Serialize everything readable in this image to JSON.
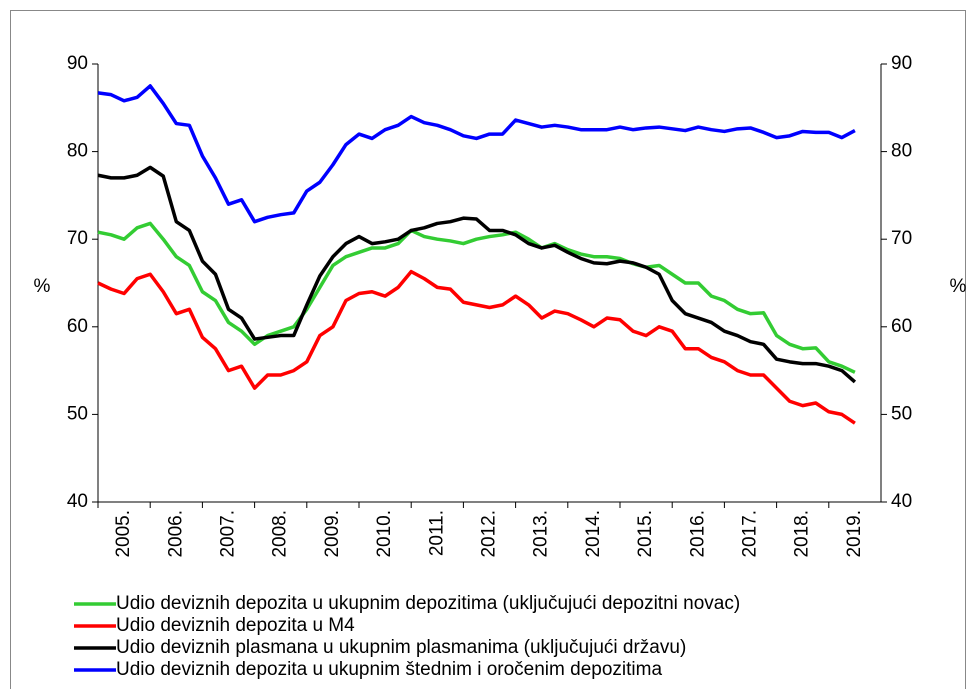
{
  "chart_data": {
    "type": "line",
    "y_label": "%",
    "y2_label": "%",
    "x": [
      2005,
      2005.25,
      2005.5,
      2005.75,
      2006,
      2006.25,
      2006.5,
      2006.75,
      2007,
      2007.25,
      2007.5,
      2007.75,
      2008,
      2008.25,
      2008.5,
      2008.75,
      2009,
      2009.25,
      2009.5,
      2009.75,
      2010,
      2010.25,
      2010.5,
      2010.75,
      2011,
      2011.25,
      2011.5,
      2011.75,
      2012,
      2012.25,
      2012.5,
      2012.75,
      2013,
      2013.25,
      2013.5,
      2013.75,
      2014,
      2014.25,
      2014.5,
      2014.75,
      2015,
      2015.25,
      2015.5,
      2015.75,
      2016,
      2016.25,
      2016.5,
      2016.75,
      2017,
      2017.25,
      2017.5,
      2017.75,
      2018,
      2018.25,
      2018.5,
      2018.75,
      2019,
      2019.25,
      2019.5
    ],
    "xlim": [
      2005,
      2020
    ],
    "xticks": [
      {
        "value": 2005,
        "label": "2005."
      },
      {
        "value": 2006,
        "label": "2006."
      },
      {
        "value": 2007,
        "label": "2007."
      },
      {
        "value": 2008,
        "label": "2008."
      },
      {
        "value": 2009,
        "label": "2009."
      },
      {
        "value": 2010,
        "label": "2010."
      },
      {
        "value": 2011,
        "label": "2011."
      },
      {
        "value": 2012,
        "label": "2012."
      },
      {
        "value": 2013,
        "label": "2013."
      },
      {
        "value": 2014,
        "label": "2014."
      },
      {
        "value": 2015,
        "label": "2015."
      },
      {
        "value": 2016,
        "label": "2016."
      },
      {
        "value": 2017,
        "label": "2017."
      },
      {
        "value": 2018,
        "label": "2018."
      },
      {
        "value": 2019,
        "label": "2019."
      }
    ],
    "ylim": [
      40,
      90
    ],
    "yticks": [
      40,
      50,
      60,
      70,
      80,
      90
    ],
    "y2lim": [
      40,
      90
    ],
    "y2ticks": [
      40,
      50,
      60,
      70,
      80,
      90
    ],
    "grid": false,
    "series": [
      {
        "name": "Udio deviznih depozita u ukupnim depozitima (uključujući depozitni novac)",
        "color": "#33cc33",
        "values": [
          70.8,
          70.5,
          70,
          71.3,
          71.8,
          70,
          68,
          67,
          64,
          63,
          60.5,
          59.5,
          58,
          59,
          59.5,
          60,
          62,
          64.5,
          67,
          68,
          68.5,
          69,
          69,
          69.5,
          71,
          70.3,
          70,
          69.8,
          69.5,
          70,
          70.3,
          70.5,
          70.8,
          70,
          69,
          69.5,
          68.8,
          68.3,
          68,
          68,
          67.8,
          67.2,
          66.8,
          67,
          66,
          65,
          65,
          63.5,
          63,
          62,
          61.5,
          61.6,
          59,
          58,
          57.5,
          57.6,
          56,
          55.5,
          54.8
        ]
      },
      {
        "name": "Udio deviznih depozita u M4",
        "color": "#ff0000",
        "values": [
          65,
          64.3,
          63.8,
          65.5,
          66,
          64,
          61.5,
          62,
          58.8,
          57.5,
          55,
          55.5,
          53,
          54.5,
          54.5,
          55,
          56,
          59,
          60,
          63,
          63.8,
          64,
          63.5,
          64.5,
          66.3,
          65.5,
          64.5,
          64.3,
          62.8,
          62.5,
          62.2,
          62.5,
          63.5,
          62.5,
          61,
          61.8,
          61.5,
          60.8,
          60,
          61,
          60.8,
          59.5,
          59,
          60,
          59.5,
          57.5,
          57.5,
          56.5,
          56,
          55,
          54.5,
          54.5,
          53,
          51.5,
          51,
          51.3,
          50.3,
          50,
          49
        ]
      },
      {
        "name": "Udio deviznih plasmana u ukupnim plasmanima (uključujući državu)",
        "color": "#000000",
        "values": [
          77.3,
          77,
          77,
          77.3,
          78.2,
          77.2,
          72,
          71,
          67.5,
          66,
          62,
          61,
          58.6,
          58.8,
          59,
          59,
          62.5,
          65.8,
          68,
          69.5,
          70.3,
          69.5,
          69.7,
          70,
          71,
          71.3,
          71.8,
          72,
          72.4,
          72.3,
          71,
          71,
          70.5,
          69.5,
          69,
          69.3,
          68.5,
          67.8,
          67.3,
          67.2,
          67.5,
          67.3,
          66.8,
          66,
          63,
          61.5,
          61,
          60.5,
          59.5,
          59,
          58.3,
          58,
          56.3,
          56,
          55.8,
          55.8,
          55.5,
          55,
          53.7
        ]
      },
      {
        "name": "Udio deviznih depozita u ukupnim štednim i oročenim depozitima",
        "color": "#0000ff",
        "values": [
          86.7,
          86.5,
          85.8,
          86.2,
          87.5,
          85.5,
          83.2,
          83,
          79.5,
          77,
          74,
          74.5,
          72,
          72.5,
          72.8,
          73,
          75.5,
          76.5,
          78.5,
          80.8,
          82,
          81.5,
          82.5,
          83,
          84,
          83.3,
          83,
          82.5,
          81.8,
          81.5,
          82,
          82,
          83.6,
          83.2,
          82.8,
          83,
          82.8,
          82.5,
          82.5,
          82.5,
          82.8,
          82.5,
          82.7,
          82.8,
          82.6,
          82.4,
          82.8,
          82.5,
          82.3,
          82.6,
          82.7,
          82.2,
          81.6,
          81.8,
          82.3,
          82.2,
          82.2,
          81.6,
          82.4
        ]
      }
    ]
  }
}
